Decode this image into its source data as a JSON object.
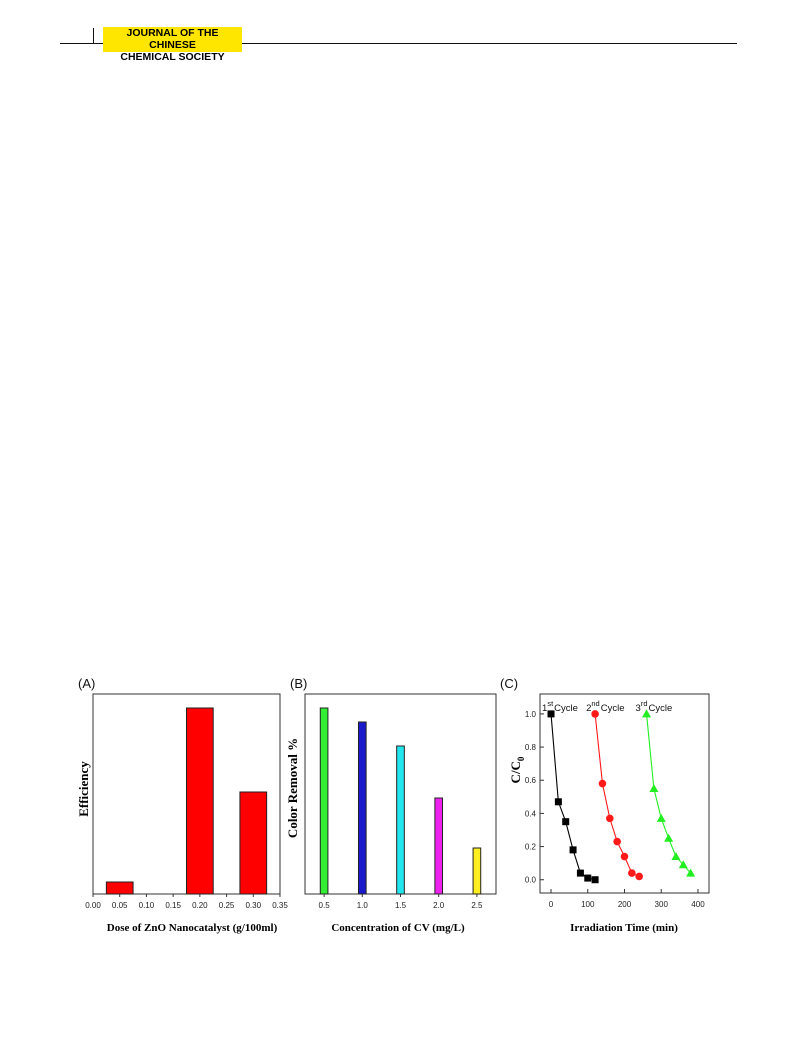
{
  "header": {
    "journal_line1": "JOURNAL OF THE CHINESE",
    "journal_line2": "CHEMICAL SOCIETY"
  },
  "colors": {
    "header_highlight": "#ffe600",
    "bar_red": "#ff0000",
    "bar_green": "#33ee33",
    "bar_blue": "#1a1acc",
    "bar_cyan": "#22e6ee",
    "bar_magenta": "#ee22ee",
    "bar_yellow": "#ffee22",
    "cycle1": "#000000",
    "cycle2": "#ff1a1a",
    "cycle3": "#22ee22"
  },
  "chart_data": [
    {
      "panel_label": "(A)",
      "type": "bar",
      "xlabel": "Dose of ZnO  Nanocatalyst (g/100ml)",
      "ylabel": "Efficiency",
      "xlim": [
        0.0,
        0.35
      ],
      "xticks": [
        "0.00",
        "0.05",
        "0.10",
        "0.15",
        "0.20",
        "0.25",
        "0.30",
        "0.35"
      ],
      "ylim": [
        0,
        100
      ],
      "yticks_shown": false,
      "bar_width": 0.05,
      "categories": [
        0.05,
        0.2,
        0.3
      ],
      "values": [
        6,
        93,
        51
      ],
      "color": "#ff0000"
    },
    {
      "panel_label": "(B)",
      "type": "bar",
      "xlabel": "Concentration of CV (mg/L)",
      "ylabel": "Color Removal %",
      "xlim": [
        0.25,
        2.75
      ],
      "xticks": [
        "0.5",
        "1.0",
        "1.5",
        "2.0",
        "2.5"
      ],
      "ylim": [
        0,
        100
      ],
      "yticks_shown": false,
      "bar_width": 0.1,
      "categories": [
        0.5,
        1.0,
        1.5,
        2.0,
        2.5
      ],
      "values": [
        93,
        86,
        74,
        48,
        23
      ],
      "bar_colors": [
        "#33ee33",
        "#1a1acc",
        "#22e6ee",
        "#ee22ee",
        "#ffee22"
      ]
    },
    {
      "panel_label": "(C)",
      "type": "scatter",
      "xlabel": "Irradiation Time (min)",
      "ylabel": "C/C",
      "ylabel_subscript": "0",
      "xlim": [
        -30,
        430
      ],
      "ylim": [
        -0.08,
        1.12
      ],
      "xticks": [
        "0",
        "100",
        "200",
        "300",
        "400"
      ],
      "yticks": [
        "0.0",
        "0.2",
        "0.4",
        "0.6",
        "0.8",
        "1.0"
      ],
      "series": [
        {
          "name": "1st Cycle",
          "label_main": "1",
          "label_sup": "st",
          "label_rest": "Cycle",
          "marker": "square",
          "color": "#000000",
          "x": [
            0,
            20,
            40,
            60,
            80,
            100,
            120
          ],
          "y": [
            1.0,
            0.47,
            0.35,
            0.18,
            0.04,
            0.01,
            0.0
          ]
        },
        {
          "name": "2nd Cycle",
          "label_main": "2",
          "label_sup": "nd",
          "label_rest": "Cycle",
          "marker": "circle",
          "color": "#ff1a1a",
          "x": [
            120,
            140,
            160,
            180,
            200,
            220,
            240
          ],
          "y": [
            1.0,
            0.58,
            0.37,
            0.23,
            0.14,
            0.04,
            0.02
          ]
        },
        {
          "name": "3rd Cycle",
          "label_main": "3",
          "label_sup": "rd",
          "label_rest": "Cycle",
          "marker": "triangle",
          "color": "#22ee22",
          "x": [
            260,
            280,
            300,
            320,
            340,
            360,
            380
          ],
          "y": [
            1.0,
            0.55,
            0.37,
            0.25,
            0.14,
            0.09,
            0.04
          ]
        }
      ]
    }
  ]
}
